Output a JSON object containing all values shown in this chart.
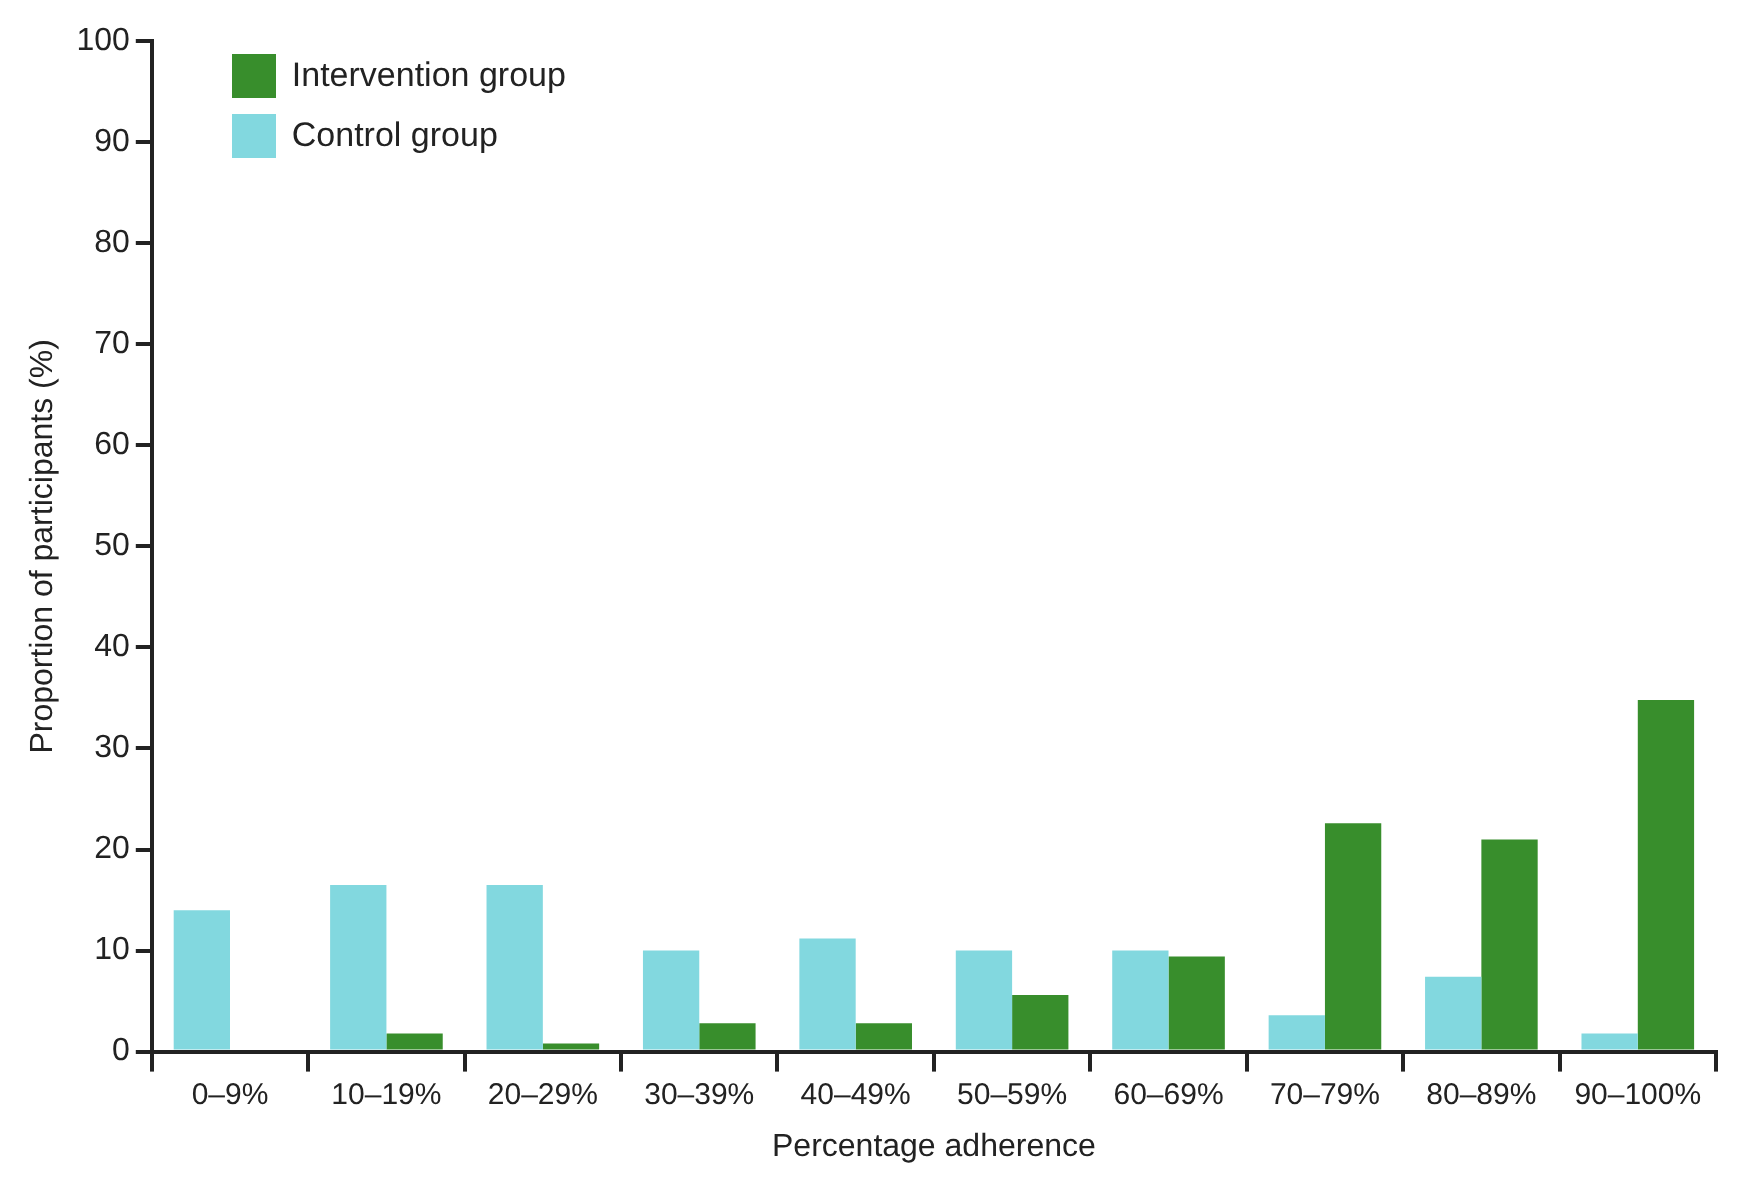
{
  "chart_data": {
    "type": "bar",
    "xlabel": "Percentage adherence",
    "ylabel": "Proportion of participants (%)",
    "categories": [
      "0–9%",
      "10–19%",
      "20–29%",
      "30–39%",
      "40–49%",
      "50–59%",
      "60–69%",
      "70–79%",
      "80–89%",
      "90–100%"
    ],
    "series": [
      {
        "name": "Control group",
        "color": "#82d8df",
        "values": [
          14,
          16.5,
          16.5,
          10,
          11.2,
          10,
          10,
          3.6,
          7.4,
          1.8
        ]
      },
      {
        "name": "Intervention group",
        "color": "#388e2c",
        "values": [
          0,
          1.8,
          0.8,
          2.8,
          2.8,
          5.6,
          9.4,
          22.6,
          21,
          34.8
        ]
      }
    ],
    "ylim": [
      0,
      100
    ],
    "yticks": [
      0,
      10,
      20,
      30,
      40,
      50,
      60,
      70,
      80,
      90,
      100
    ],
    "grid": false,
    "legend": "top left"
  }
}
